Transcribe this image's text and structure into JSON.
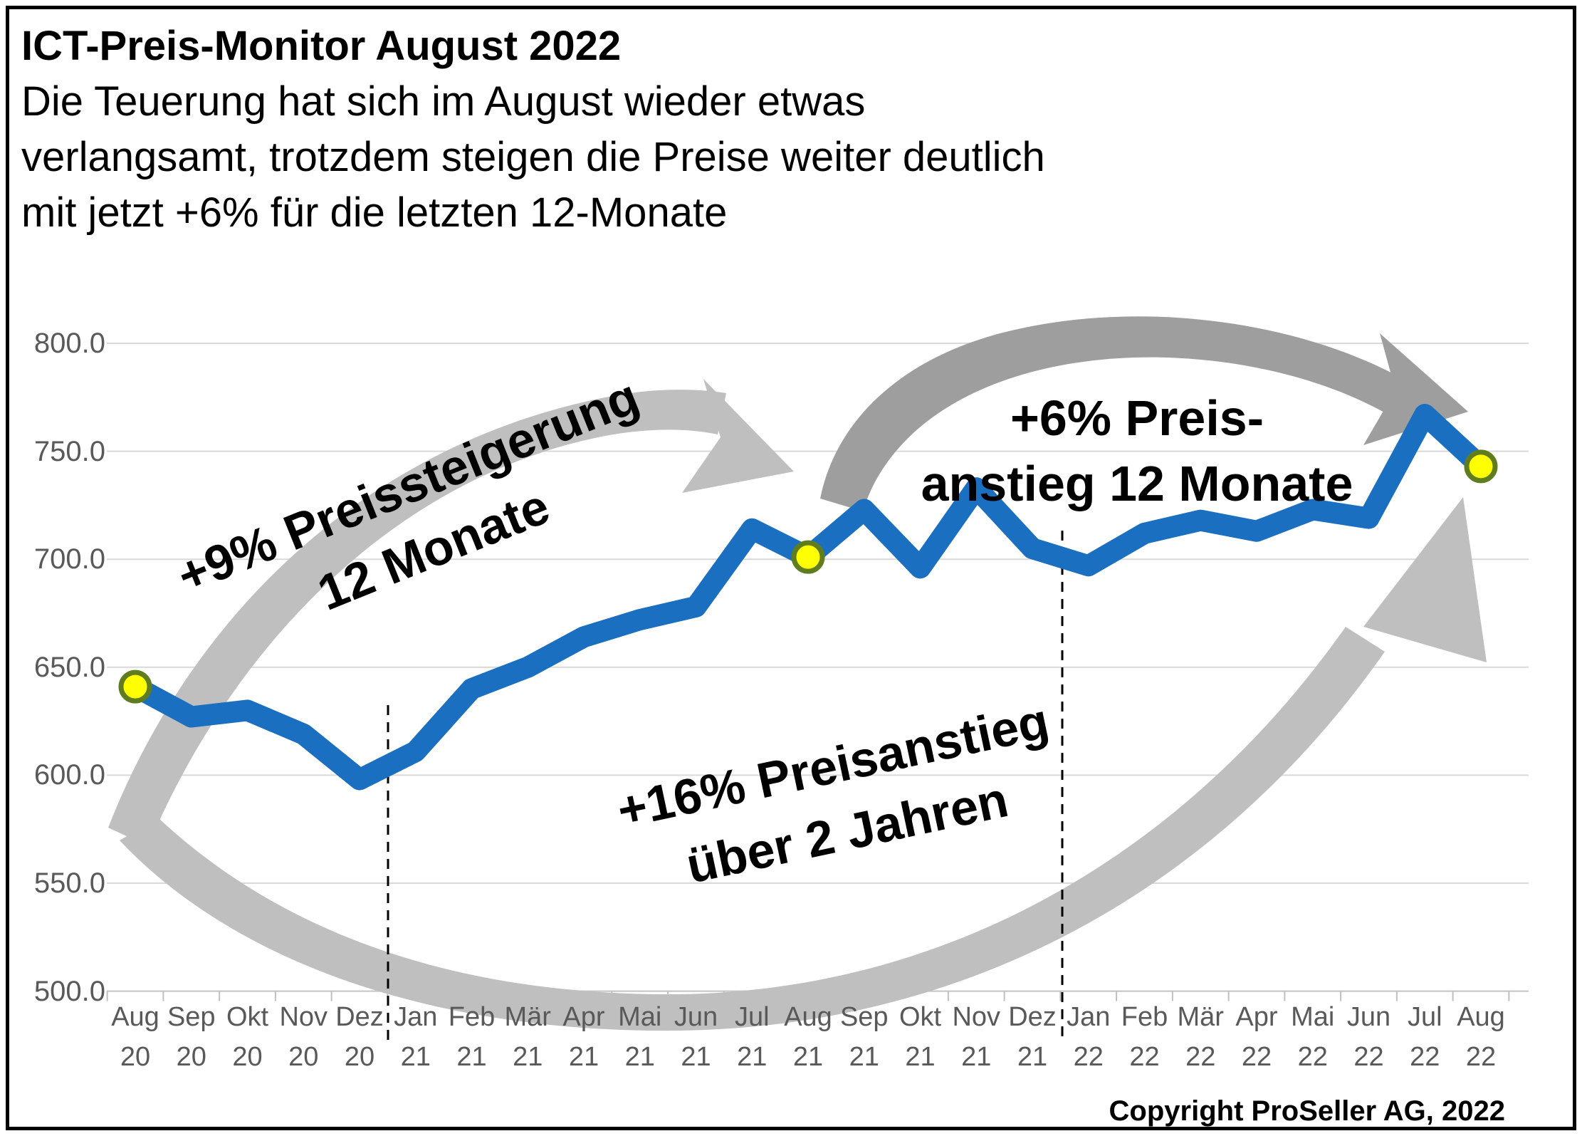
{
  "title": {
    "line1": "ICT-Preis-Monitor August 2022",
    "subtitle_lines": [
      "Die Teuerung hat sich im August wieder etwas",
      "verlangsamt, trotzdem steigen die Preise weiter deutlich",
      "mit jetzt +6% für die letzten 12-Monate"
    ]
  },
  "annotations": {
    "nine": {
      "line1": "+9% Preissteigerung",
      "line2": "12 Monate"
    },
    "six": {
      "line1": "+6% Preis-",
      "line2": "anstieg 12 Monate"
    },
    "sixteen": {
      "line1": "+16% Preisanstieg",
      "line2": "über 2 Jahren"
    }
  },
  "copyright": "Copyright ProSeller AG, 2022",
  "colors": {
    "line": "#1B6FC0",
    "marker_fill": "#FFFF00",
    "marker_stroke": "#5F7D1F",
    "arc_light": "#BFBFBF",
    "arc_dark": "#9E9E9E",
    "gridline": "#D9D9D9",
    "axis_text": "#595959"
  },
  "chart_data": {
    "type": "line",
    "title": "ICT-Preis-Monitor August 2022",
    "xlabel": "",
    "ylabel": "",
    "categories_month": [
      "Aug",
      "Sep",
      "Okt",
      "Nov",
      "Dez",
      "Jan",
      "Feb",
      "Mär",
      "Apr",
      "Mai",
      "Jun",
      "Jul",
      "Aug",
      "Sep",
      "Okt",
      "Nov",
      "Dez",
      "Jan",
      "Feb",
      "Mär",
      "Apr",
      "Mai",
      "Jun",
      "Jul",
      "Aug"
    ],
    "categories_year": [
      "20",
      "20",
      "20",
      "20",
      "20",
      "21",
      "21",
      "21",
      "21",
      "21",
      "21",
      "21",
      "21",
      "21",
      "21",
      "21",
      "21",
      "22",
      "22",
      "22",
      "22",
      "22",
      "22",
      "22",
      "22"
    ],
    "values": [
      641,
      627,
      630,
      619,
      598,
      611,
      640,
      650,
      664,
      672,
      678,
      714,
      701,
      723,
      696,
      733,
      705,
      697,
      712,
      718,
      713,
      723,
      719,
      767,
      743
    ],
    "ylim": [
      500,
      800
    ],
    "y_ticks": [
      "800.0",
      "750.0",
      "700.0",
      "650.0",
      "600.0",
      "550.0",
      "500.0"
    ],
    "grid": "horizontal",
    "legend": "none",
    "highlight_indices": [
      0,
      12,
      24
    ],
    "highlighted_points": [
      {
        "label": "Aug 20",
        "value": 641
      },
      {
        "label": "Aug 21",
        "value": 701
      },
      {
        "label": "Aug 22",
        "value": 743
      }
    ],
    "annotation_texts": [
      "+9% Preissteigerung 12 Monate",
      "+6% Preis- anstieg 12 Monate",
      "+16% Preisanstieg über 2 Jahren"
    ],
    "dividers_between_categories": [
      "Dez 20 | Jan 21",
      "Dez 21 | Jan 22"
    ]
  }
}
